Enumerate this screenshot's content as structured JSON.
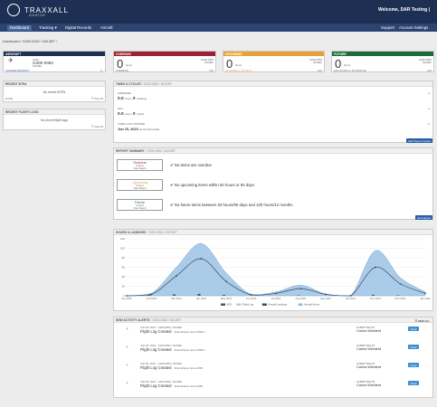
{
  "brand": {
    "name": "TRAXXALL",
    "sub": "AVIATOR"
  },
  "welcome": "Welcome, DAR Testing |",
  "nav": [
    "Dashboard",
    "Tracking ▾",
    "Digital Records",
    "Aircraft"
  ],
  "nav_right": [
    "Support",
    "Account Settings"
  ],
  "breadcrumb": "Dashboard / G200-0052 / N213EF ›",
  "aircraft": {
    "header": "AIRCRAFT",
    "model": "G200",
    "serial": "G200-0052",
    "reg": "N213EF",
    "change": "CHANGE AIRCRAFT",
    "edit": "✎"
  },
  "status": [
    {
      "header": "OVERDUE",
      "count": "0",
      "unit": "Items",
      "serial": "G200-0052",
      "reg": "N213EF",
      "foot_l": "OVERDUE",
      "foot_r": "N/A",
      "color": "#9b2230"
    },
    {
      "header": "UPCOMING",
      "count": "0",
      "unit": "Items",
      "serial": "G200-0052",
      "reg": "N213EF",
      "foot_l": "60 HOURS or 90 DAYS",
      "foot_r": "N/A",
      "color": "#e8a13a"
    },
    {
      "header": "FUTURE",
      "count": "0",
      "unit": "Items",
      "serial": "G200-0052",
      "reg": "N213EF",
      "foot_l": "100 HOURS or 12 MONTHS",
      "foot_r": "N/A",
      "color": "#1c6a3b"
    }
  ],
  "recent_mtrs": {
    "header": "RECENT MTRs",
    "empty": "No recent MTRs",
    "add": "Add",
    "view": "View All"
  },
  "recent_logs": {
    "header": "RECENT FLIGHT LOGS",
    "empty": "No recent flight logs",
    "view": "View All"
  },
  "times": {
    "header": "TIMES & CYCLES",
    "sub": "G200-0052 / N213EF",
    "airframe": "AIRFRAME",
    "airframe_val": "0.0",
    "airframe_unit": "Hours",
    "airframe_land": "0",
    "airframe_land_unit": "Landings",
    "apu": "APU",
    "apu_val": "0.0",
    "apu_unit": "Hours",
    "apu_cyc": "0",
    "apu_cyc_unit": "Cycles",
    "updated": "TIMES LAST UPDATED",
    "updated_val": "Jun 15, 2023",
    "updated_via": "via Aircraft Update",
    "add_button": "Add Times & Cycles"
  },
  "summary": {
    "header": "REPORT SUMMARY",
    "sub": "G200-0052 / N213EF",
    "rows": [
      {
        "title": "Overdue",
        "count": "0 Items",
        "link": "View Report",
        "text": "No items are overdue",
        "color": "#9b2230"
      },
      {
        "title": "Upcoming",
        "count": "0 Items",
        "link": "View Report",
        "text": "No upcoming items within 60 hours or 90 days",
        "color": "#e8a13a"
      },
      {
        "title": "Future",
        "count": "0 Items",
        "link": "View Report",
        "text": "No future items between 60 hours/90 days and 100 hours/12 months",
        "color": "#1c6a3b"
      }
    ],
    "view_button": "View Report"
  },
  "chart_data": {
    "type": "area",
    "title": "HOURS & LANDINGS",
    "sub": "G200-0052 / N213EF",
    "categories": [
      "Jan 2021",
      "Feb 2021",
      "Mar 2021",
      "Apr 2021",
      "May 2021",
      "Jun 2021",
      "Jul 2021",
      "Aug 2021",
      "Sep 2021",
      "Oct 2021",
      "Nov 2021",
      "Dec 2021",
      "Jan 2022"
    ],
    "ylim": [
      0,
      120
    ],
    "yticks": [
      0,
      20,
      40,
      60,
      80,
      100,
      120
    ],
    "series": [
      {
        "name": "Aircraft Hours",
        "type": "area",
        "color": "#8fbbe0",
        "values": [
          0,
          5,
          60,
          110,
          48,
          3,
          8,
          22,
          4,
          0,
          95,
          38,
          8
        ]
      },
      {
        "name": "Aircraft Landings",
        "type": "line",
        "color": "#3b4a63",
        "values": [
          0,
          3,
          42,
          78,
          30,
          2,
          5,
          15,
          3,
          0,
          60,
          25,
          5
        ]
      },
      {
        "name": "APU",
        "type": "bar",
        "color": "#555555",
        "values": [
          0,
          2,
          3,
          4,
          2,
          0,
          0,
          1,
          0,
          0,
          2,
          1,
          0
        ]
      },
      {
        "name": "Flight Log",
        "type": "bar",
        "color": "#c8c8c8",
        "values": [
          0,
          0,
          1,
          0,
          0,
          0,
          0,
          0,
          0,
          0,
          0,
          0,
          0
        ]
      }
    ]
  },
  "activity": {
    "header": "NEW ACTIVITY ALERTS",
    "sub": "G200-0052 / N213EF",
    "view_all": "VIEW ALL",
    "rows": [
      {
        "meta": "JUN 05, 2024 · G200-0052 / N213EF",
        "title": "Flight Log Created",
        "detail": "· Total airframe hours 2550.0",
        "by": "SUBMITTED BY",
        "name": "Carina Wielderd",
        "btn": "Clear"
      },
      {
        "meta": "JUN 05, 2024 · G200-0052 / N213EF",
        "title": "Flight Log Created",
        "detail": "· Total airframe hours 2550.0",
        "by": "SUBMITTED BY",
        "name": "Carina Wielderd",
        "btn": "Clear"
      },
      {
        "meta": "JUN 05, 2024 · G200-0052 / N213EF",
        "title": "Flight Log Created",
        "detail": "· Total airframe hours 2550",
        "by": "SUBMITTED BY",
        "name": "Carina Wielderd",
        "btn": "Clear"
      },
      {
        "meta": "JUN 05, 2024 · G200-0052 / N213EF",
        "title": "Flight Log Created",
        "detail": "· Total airframe hours 2550",
        "by": "SUBMITTED BY",
        "name": "Carina Wielderd",
        "btn": "Clear"
      }
    ]
  }
}
